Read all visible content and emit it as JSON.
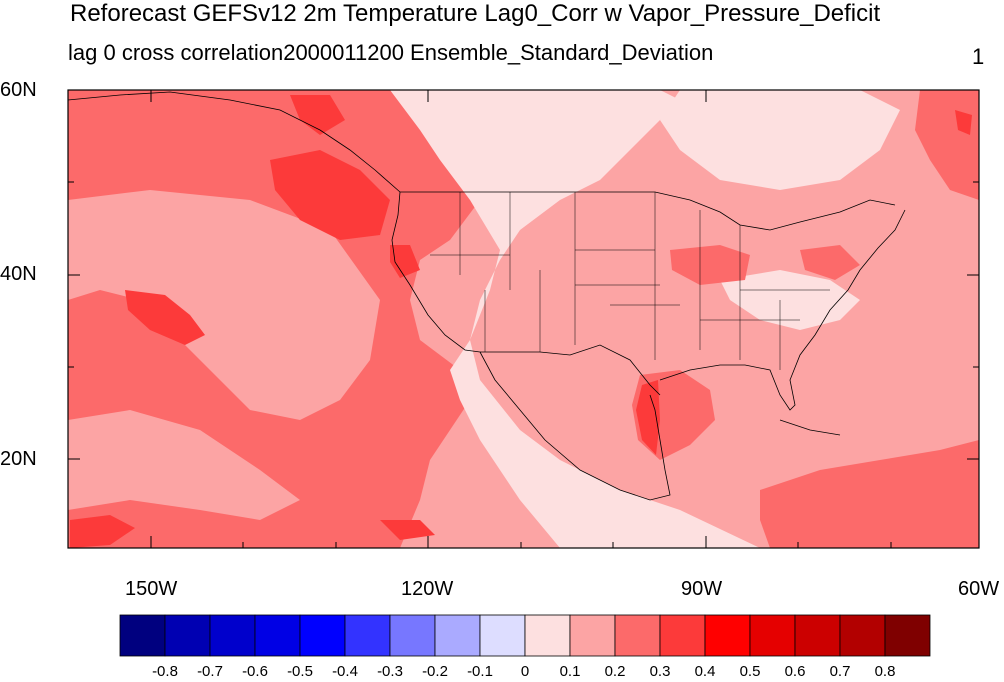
{
  "title": "Reforecast GEFSv12 2m Temperature Lag0_Corr w Vapor_Pressure_Deficit",
  "subtitle_left": "lag 0 cross correlation2000011200 Ensemble_Standard_Deviation",
  "subtitle_right": "1",
  "lat_labels": [
    "60N",
    "40N",
    "20N"
  ],
  "lon_labels": [
    "150W",
    "120W",
    "90W",
    "60W"
  ],
  "colorbar": {
    "colors": [
      "#00007f",
      "#0000b2",
      "#0000cc",
      "#0000e5",
      "#0000ff",
      "#3333ff",
      "#7777ff",
      "#aaaaff",
      "#ddddff",
      "#fde0e0",
      "#fca4a4",
      "#fc6a6a",
      "#fc3a3a",
      "#ff0000",
      "#e50000",
      "#cc0000",
      "#b20000",
      "#7f0000"
    ],
    "labels": [
      "-0.8",
      "-0.7",
      "-0.6",
      "-0.5",
      "-0.4",
      "-0.3",
      "-0.2",
      "-0.1",
      "0",
      "0.1",
      "0.2",
      "0.3",
      "0.4",
      "0.5",
      "0.6",
      "0.7",
      "0.8"
    ]
  },
  "legend_colors": {
    "land_background": "#fde0e0",
    "moderate": "#fca4a4",
    "strong": "#fc6a6a",
    "stronger": "#fc3a3a"
  }
}
